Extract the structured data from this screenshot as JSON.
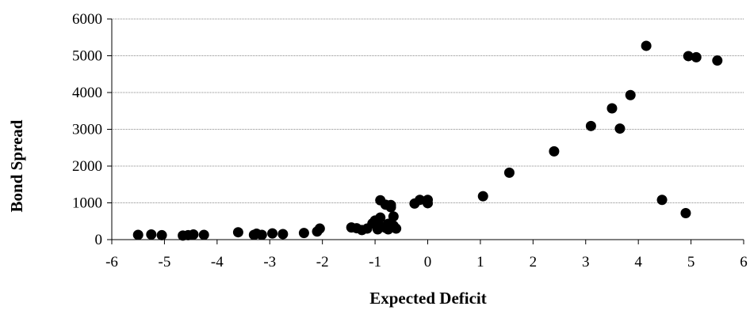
{
  "chart_data": {
    "type": "scatter",
    "title": "",
    "xlabel": "Expected Deficit",
    "ylabel": "Bond Spread",
    "xlim": [
      -6,
      6
    ],
    "ylim": [
      0,
      6000
    ],
    "x_ticks": [
      "-6",
      "-5",
      "-4",
      "-3",
      "-2",
      "-1",
      "0",
      "1",
      "2",
      "3",
      "4",
      "5",
      "6"
    ],
    "y_ticks": [
      "0",
      "1000",
      "2000",
      "3000",
      "4000",
      "5000",
      "6000"
    ],
    "grid": "horizontal",
    "marker_color": "#000000",
    "series": [
      {
        "points": [
          [
            -5.5,
            130
          ],
          [
            -5.25,
            140
          ],
          [
            -5.05,
            120
          ],
          [
            -4.65,
            110
          ],
          [
            -4.55,
            120
          ],
          [
            -4.45,
            140
          ],
          [
            -4.25,
            130
          ],
          [
            -3.6,
            200
          ],
          [
            -3.3,
            130
          ],
          [
            -3.25,
            160
          ],
          [
            -3.15,
            130
          ],
          [
            -2.95,
            170
          ],
          [
            -2.75,
            150
          ],
          [
            -2.35,
            180
          ],
          [
            -2.1,
            220
          ],
          [
            -2.05,
            300
          ],
          [
            -1.45,
            330
          ],
          [
            -1.35,
            310
          ],
          [
            -1.25,
            260
          ],
          [
            -1.15,
            300
          ],
          [
            -1.05,
            440
          ],
          [
            -1.0,
            520
          ],
          [
            -0.95,
            280
          ],
          [
            -0.9,
            370
          ],
          [
            -0.9,
            600
          ],
          [
            -0.9,
            1070
          ],
          [
            -0.8,
            320
          ],
          [
            -0.8,
            950
          ],
          [
            -0.75,
            280
          ],
          [
            -0.75,
            430
          ],
          [
            -0.7,
            880
          ],
          [
            -0.7,
            940
          ],
          [
            -0.65,
            380
          ],
          [
            -0.65,
            630
          ],
          [
            -0.6,
            300
          ],
          [
            -0.25,
            980
          ],
          [
            -0.15,
            1080
          ],
          [
            0.0,
            1080
          ],
          [
            0.0,
            990
          ],
          [
            1.05,
            1180
          ],
          [
            1.55,
            1820
          ],
          [
            2.4,
            2400
          ],
          [
            3.1,
            3090
          ],
          [
            3.5,
            3570
          ],
          [
            3.65,
            3020
          ],
          [
            3.85,
            3930
          ],
          [
            4.15,
            5270
          ],
          [
            4.45,
            1080
          ],
          [
            4.9,
            720
          ],
          [
            4.95,
            4990
          ],
          [
            5.1,
            4960
          ],
          [
            5.5,
            4870
          ]
        ]
      }
    ]
  }
}
